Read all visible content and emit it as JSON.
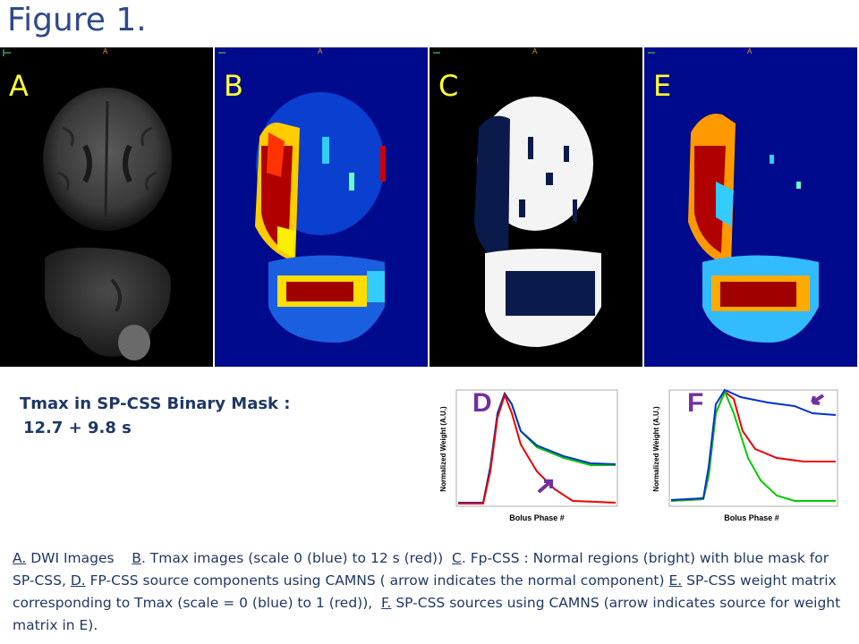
{
  "figure_title": "Figure 1.",
  "panels": {
    "a": {
      "label": "A",
      "marker": "A"
    },
    "b": {
      "label": "B",
      "marker": "A"
    },
    "c": {
      "label": "C",
      "marker": "A"
    },
    "e": {
      "label": "E",
      "marker": "A"
    }
  },
  "tmax_heading": "Tmax in SP-CSS Binary Mask :",
  "tmax_value": "12.7 + 9.8 s",
  "plot_d": {
    "label": "D",
    "ylabel": "Normalized Weight (A.U.)",
    "xlabel": "Bolus Phase #"
  },
  "plot_f": {
    "label": "F",
    "ylabel": "Normalized Weight (A.U.)",
    "xlabel": "Bolus Phase #"
  },
  "colors": {
    "title": "#2e4a8a",
    "caption": "#1f3864",
    "label": "#ffff33",
    "plot_label": "#7030a0",
    "arrow": "#7030a0"
  },
  "caption": {
    "a_key": "A.",
    "a_text": " DWI Images",
    "b_key": "B",
    "b_text": ". Tmax images (scale 0 (blue) to 12 s (red))",
    "c_key": "C",
    "c_text": ". Fp-CSS : Normal regions (bright) with blue mask for SP-CSS,",
    "d_key": "D.",
    "d_text": " FP-CSS source components using CAMNS ( arrow indicates the normal component)",
    "e_key": "E.",
    "e_text": " SP-CSS weight matrix corresponding to Tmax (scale  = 0 (blue) to 1 (red)),",
    "f_key": "F.",
    "f_text": " SP-CSS sources using CAMNS (arrow indicates source for weight matrix in E)."
  }
}
